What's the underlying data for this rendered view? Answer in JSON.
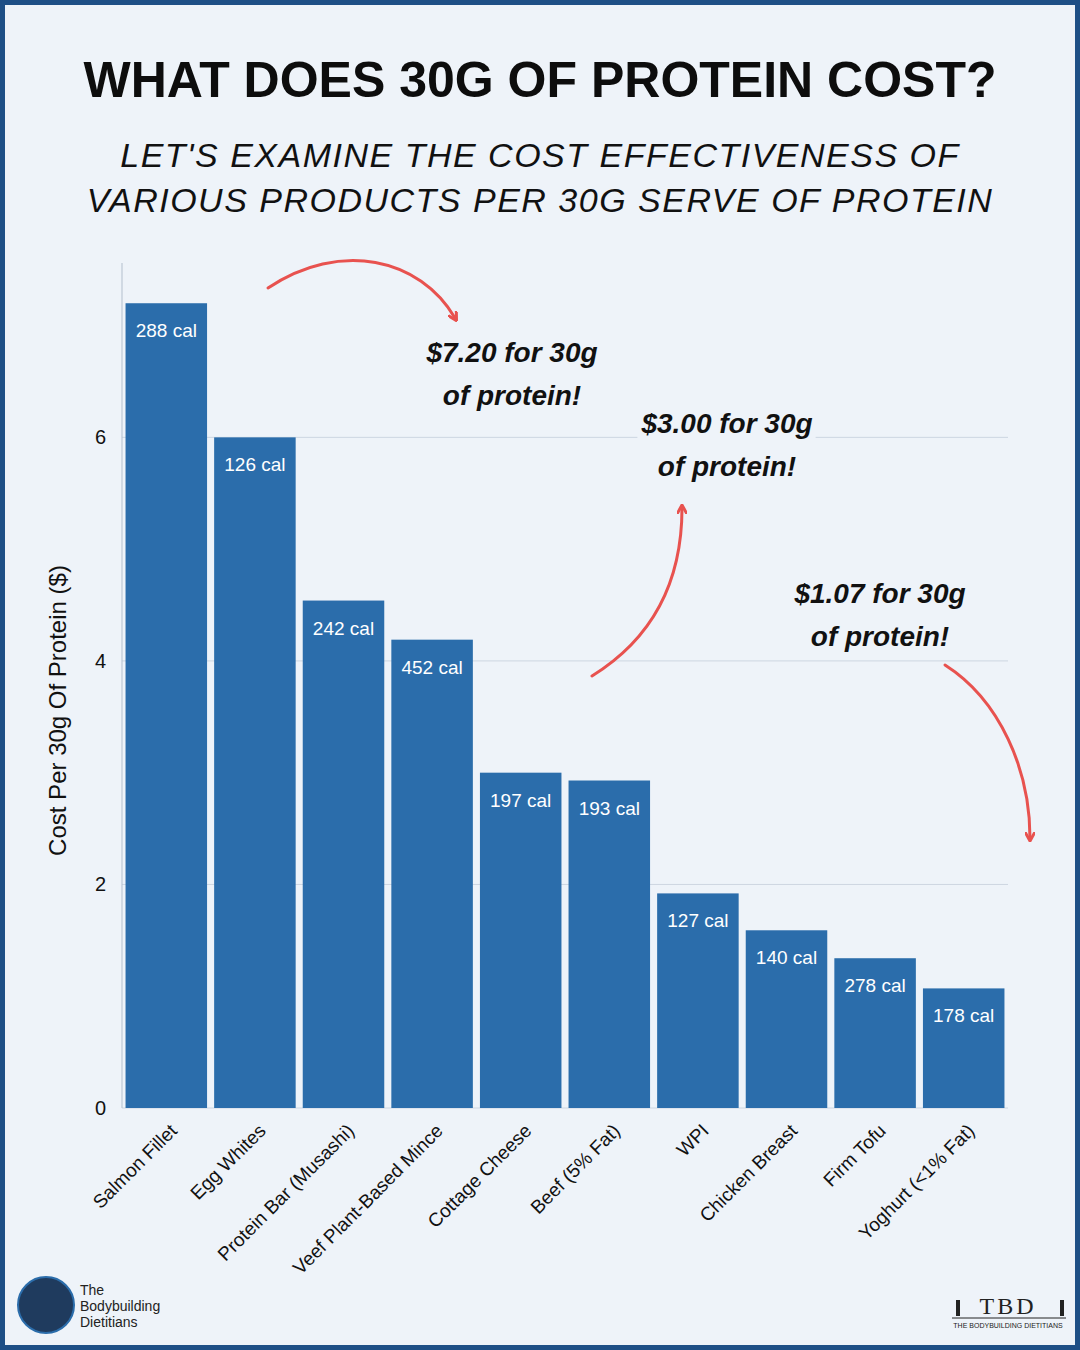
{
  "chart_data": {
    "type": "bar",
    "title": "WHAT DOES 30G OF PROTEIN COST?",
    "subtitle": "LET'S EXAMINE THE COST EFFECTIVENESS OF VARIOUS PRODUCTS PER 30G SERVE OF PROTEIN",
    "y_label": "Cost Per 30g Of Protein ($)",
    "categories": [
      "Salmon Fillet",
      "Egg Whites",
      "Protein Bar (Musashi)",
      "Veef Plant-Based Mince",
      "Cottage Cheese",
      "Beef (5% Fat)",
      "WPI",
      "Chicken Breast",
      "Firm Tofu",
      "Yoghurt (<1% Fat)"
    ],
    "values": [
      7.2,
      6.0,
      4.54,
      4.19,
      3.0,
      2.93,
      1.92,
      1.59,
      1.34,
      1.07
    ],
    "bar_labels": [
      "288 cal",
      "126 cal",
      "242 cal",
      "452 cal",
      "197 cal",
      "193 cal",
      "127 cal",
      "140 cal",
      "278 cal",
      "178 cal"
    ],
    "color": "#2b6dab",
    "ylim": [
      0,
      7.56
    ],
    "yticks": [
      0,
      2,
      4,
      6
    ],
    "grid": true,
    "annotations": [
      {
        "lines": [
          "$7.20 for 30g",
          "of protein!"
        ]
      },
      {
        "lines": [
          "$3.00 for 30g",
          "of protein!"
        ]
      },
      {
        "lines": [
          "$1.07 for 30g",
          "of protein!"
        ]
      }
    ]
  },
  "branding": {
    "name_lines": [
      "The",
      "Bodybuilding",
      "Dietitians"
    ],
    "logo": "TBD",
    "logo_caption": "THE BODYBUILDING DIETITIANS"
  }
}
